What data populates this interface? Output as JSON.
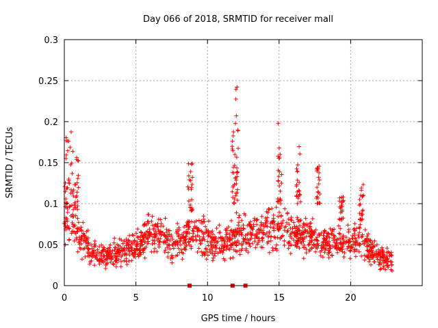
{
  "chart_data": {
    "type": "scatter",
    "title": "Day 066 of 2018, SRMTID for receiver mall",
    "xlabel": "GPS time / hours",
    "ylabel": "SRMTID / TECUs",
    "xlim": [
      0,
      25
    ],
    "ylim": [
      0,
      0.3
    ],
    "x_ticks": [
      "0",
      "5",
      "10",
      "15",
      "20"
    ],
    "y_ticks": [
      "0",
      "0.05",
      "0.1",
      "0.15",
      "0.2",
      "0.25",
      "0.3"
    ],
    "grid": true,
    "legend": "none",
    "marker_color": "#ff0000",
    "series": [
      {
        "marker": "+",
        "trend": [
          [
            0.0,
            0.09
          ],
          [
            0.2,
            0.085
          ],
          [
            0.5,
            0.08
          ],
          [
            0.8,
            0.07
          ],
          [
            1.2,
            0.06
          ],
          [
            1.6,
            0.05
          ],
          [
            2.0,
            0.042
          ],
          [
            2.5,
            0.038
          ],
          [
            3.0,
            0.036
          ],
          [
            3.5,
            0.04
          ],
          [
            4.0,
            0.042
          ],
          [
            4.5,
            0.045
          ],
          [
            5.0,
            0.048
          ],
          [
            5.5,
            0.055
          ],
          [
            6.0,
            0.065
          ],
          [
            6.5,
            0.06
          ],
          [
            7.0,
            0.057
          ],
          [
            7.5,
            0.052
          ],
          [
            8.0,
            0.053
          ],
          [
            8.5,
            0.06
          ],
          [
            9.0,
            0.065
          ],
          [
            9.5,
            0.06
          ],
          [
            10.0,
            0.055
          ],
          [
            10.5,
            0.052
          ],
          [
            11.0,
            0.05
          ],
          [
            11.5,
            0.052
          ],
          [
            12.0,
            0.065
          ],
          [
            12.5,
            0.062
          ],
          [
            13.0,
            0.06
          ],
          [
            13.5,
            0.065
          ],
          [
            14.0,
            0.07
          ],
          [
            14.5,
            0.072
          ],
          [
            15.0,
            0.075
          ],
          [
            15.5,
            0.068
          ],
          [
            16.0,
            0.065
          ],
          [
            16.5,
            0.062
          ],
          [
            17.0,
            0.06
          ],
          [
            17.5,
            0.058
          ],
          [
            18.0,
            0.055
          ],
          [
            18.5,
            0.052
          ],
          [
            19.0,
            0.05
          ],
          [
            19.5,
            0.052
          ],
          [
            20.0,
            0.055
          ],
          [
            20.5,
            0.058
          ],
          [
            21.0,
            0.05
          ],
          [
            21.5,
            0.04
          ],
          [
            22.0,
            0.035
          ],
          [
            22.5,
            0.032
          ],
          [
            22.9,
            0.03
          ]
        ],
        "bursts": [
          {
            "x_range": [
              0.1,
              0.6
            ],
            "y_range": [
              0.1,
              0.19
            ]
          },
          {
            "x_range": [
              0.6,
              1.0
            ],
            "y_range": [
              0.09,
              0.165
            ]
          },
          {
            "x_range": [
              8.6,
              9.0
            ],
            "y_range": [
              0.09,
              0.15
            ]
          },
          {
            "x_range": [
              11.7,
              11.95
            ],
            "y_range": [
              0.1,
              0.2
            ]
          },
          {
            "x_range": [
              11.95,
              12.15
            ],
            "y_range": [
              0.1,
              0.26
            ]
          },
          {
            "x_range": [
              14.9,
              15.2
            ],
            "y_range": [
              0.1,
              0.21
            ]
          },
          {
            "x_range": [
              16.2,
              16.5
            ],
            "y_range": [
              0.1,
              0.175
            ]
          },
          {
            "x_range": [
              17.6,
              17.9
            ],
            "y_range": [
              0.1,
              0.15
            ]
          },
          {
            "x_range": [
              19.2,
              19.5
            ],
            "y_range": [
              0.08,
              0.11
            ]
          },
          {
            "x_range": [
              20.6,
              20.9
            ],
            "y_range": [
              0.08,
              0.13
            ]
          }
        ],
        "x_end": 22.9
      },
      {
        "marker": "square",
        "points": [
          [
            8.75,
            0.0
          ],
          [
            11.75,
            0.0
          ],
          [
            12.65,
            0.0
          ]
        ]
      }
    ]
  }
}
